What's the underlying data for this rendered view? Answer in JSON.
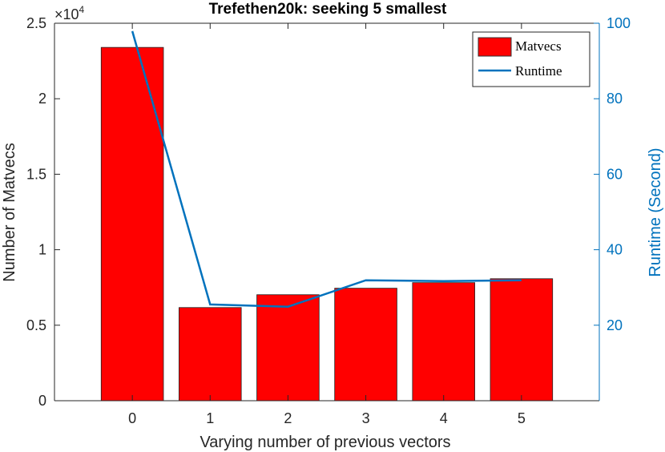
{
  "chart_data": {
    "type": "bar",
    "title": "Trefethen20k: seeking 5 smallest",
    "xlabel": "Varying number of previous vectors",
    "ylabel": "Number of Matvecs",
    "ylabel_right": "Runtime (Second)",
    "y_exponent_label": "×10",
    "y_exponent_power": "4",
    "categories": [
      "0",
      "1",
      "2",
      "3",
      "4",
      "5"
    ],
    "xlim": [
      -1,
      6
    ],
    "ylim": [
      0,
      25000
    ],
    "ylim_right": [
      0,
      100
    ],
    "yticks": [
      0,
      0.5,
      1,
      1.5,
      2,
      2.5
    ],
    "yticks_right": [
      20,
      40,
      60,
      80,
      100
    ],
    "legend_position": "top-right",
    "series": [
      {
        "name": "Matvecs",
        "type": "bar",
        "axis": "left",
        "color": "#ff0000",
        "values": [
          23400,
          6170,
          7020,
          7450,
          7820,
          8080
        ]
      },
      {
        "name": "Runtime",
        "type": "line",
        "axis": "right",
        "color": "#0072bd",
        "values": [
          97.9,
          25.5,
          24.9,
          31.9,
          31.7,
          31.9
        ]
      }
    ]
  }
}
